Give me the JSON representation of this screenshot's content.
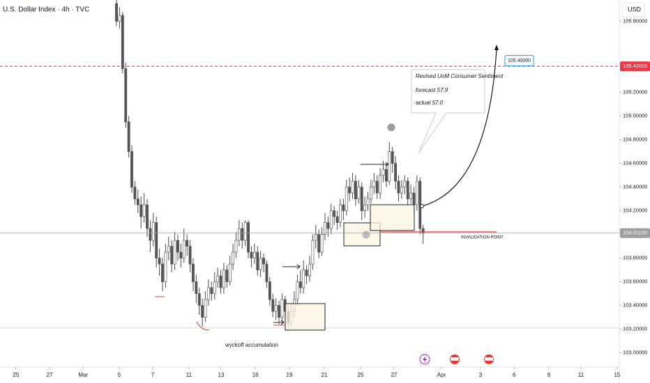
{
  "chart_data": {
    "type": "candlestick",
    "title": "U.S. Dollar Index · 4h · TVC",
    "currency": "USD",
    "up_color": "#ffffff",
    "down_color": "#555555",
    "wick_color": "#4a4a4a",
    "grid": false,
    "xlim": [
      0,
      202
    ],
    "ylim": [
      102.88,
      105.98
    ],
    "xticks": [
      {
        "value": 5.2,
        "label": "25"
      },
      {
        "value": 16.2,
        "label": "27"
      },
      {
        "value": 27.1,
        "label": "Mar"
      },
      {
        "value": 38.9,
        "label": "5"
      },
      {
        "value": 49.8,
        "label": "7"
      },
      {
        "value": 61.6,
        "label": "11"
      },
      {
        "value": 72.1,
        "label": "13"
      },
      {
        "value": 83.3,
        "label": "16"
      },
      {
        "value": 94.4,
        "label": "19"
      },
      {
        "value": 105.8,
        "label": "21"
      },
      {
        "value": 117.6,
        "label": "25"
      },
      {
        "value": 128.5,
        "label": "27"
      },
      {
        "value": 144,
        "label": "Apr"
      },
      {
        "value": 156.7,
        "label": "3"
      },
      {
        "value": 167.7,
        "label": "6"
      },
      {
        "value": 179,
        "label": "9"
      },
      {
        "value": 189.5,
        "label": "11"
      },
      {
        "value": 201.3,
        "label": "15"
      }
    ],
    "yticks": [
      {
        "value": 103,
        "label": "103.00000"
      },
      {
        "value": 103.2,
        "label": "103.20000"
      },
      {
        "value": 103.4,
        "label": "103.40000"
      },
      {
        "value": 103.6,
        "label": "103.60000"
      },
      {
        "value": 103.8,
        "label": "103.80000"
      },
      {
        "value": 104.2,
        "label": "104.20000"
      },
      {
        "value": 104.4,
        "label": "104.40000"
      },
      {
        "value": 104.6,
        "label": "104.60000"
      },
      {
        "value": 104.8,
        "label": "104.80000"
      },
      {
        "value": 105,
        "label": "105.00000"
      },
      {
        "value": 105.2,
        "label": "105.20000"
      },
      {
        "value": 105.8,
        "label": "105.80000"
      }
    ],
    "price_lines": [
      {
        "value": 105.42,
        "label": "105.42000",
        "color": "#f23645",
        "dashed": true
      },
      {
        "value": 104.011,
        "label": "104.01100",
        "color": "#9e9e9e",
        "dashed": false
      }
    ],
    "target": {
      "value": 105.4,
      "label": "105.40000"
    },
    "callout": {
      "title": "Revised UoM Consumer Sentiment",
      "forecast": "forecast  57.9",
      "actual": "actual 57.0"
    },
    "invalidation_label": "INVALIDATION POINT",
    "note": "wyckoff accumulation",
    "x": [
      38,
      39,
      40,
      41,
      42,
      43,
      44,
      45,
      46,
      47,
      48,
      49,
      50,
      51,
      52,
      53,
      54,
      55,
      56,
      57,
      58,
      59,
      60,
      61,
      62,
      63,
      64,
      65,
      66,
      67,
      68,
      69,
      70,
      71,
      72,
      73,
      74,
      75,
      76,
      77,
      78,
      79,
      80,
      81,
      82,
      83,
      84,
      85,
      86,
      87,
      88,
      89,
      90,
      91,
      92,
      93,
      94,
      95,
      96,
      97,
      98,
      99,
      100,
      101,
      102,
      103,
      104,
      105,
      106,
      107,
      108,
      109,
      110,
      111,
      112,
      113,
      114,
      115,
      116,
      117,
      118,
      119,
      120,
      121,
      122,
      123,
      124,
      125,
      126,
      127,
      128,
      129,
      130,
      131,
      132,
      133,
      134,
      135,
      136,
      137,
      138
    ],
    "open": [
      105.95,
      105.8,
      105.85,
      105.4,
      104.95,
      104.7,
      104.4,
      104.3,
      104.25,
      104.15,
      104.25,
      104.05,
      103.95,
      104.1,
      103.8,
      103.75,
      103.6,
      103.85,
      103.9,
      103.75,
      103.95,
      103.85,
      103.8,
      103.95,
      103.9,
      103.75,
      103.6,
      103.5,
      103.4,
      103.3,
      103.45,
      103.55,
      103.5,
      103.6,
      103.65,
      103.55,
      103.7,
      103.6,
      103.75,
      103.85,
      103.95,
      104.05,
      103.95,
      104.1,
      103.85,
      103.8,
      103.85,
      103.7,
      103.8,
      103.75,
      103.6,
      103.45,
      103.35,
      103.4,
      103.3,
      103.45,
      103.35,
      103.25,
      103.35,
      103.45,
      103.6,
      103.55,
      103.7,
      103.65,
      103.75,
      103.95,
      104.0,
      103.85,
      104.0,
      104.1,
      104.05,
      104.2,
      104.15,
      104.1,
      104.25,
      104.2,
      104.4,
      104.35,
      104.45,
      104.3,
      104.4,
      104.2,
      104.25,
      104.3,
      104.4,
      104.45,
      104.35,
      104.5,
      104.55,
      104.45,
      104.7,
      104.6,
      104.45,
      104.35,
      104.4,
      104.45,
      104.3,
      104.35,
      104.25,
      104.45,
      104.05
    ],
    "high": [
      105.98,
      105.92,
      105.88,
      105.45,
      105.0,
      104.75,
      104.45,
      104.38,
      104.32,
      104.35,
      104.3,
      104.12,
      104.18,
      104.15,
      103.88,
      103.8,
      103.92,
      103.98,
      103.95,
      104.02,
      104.0,
      103.92,
      104.05,
      104.0,
      103.95,
      103.8,
      103.66,
      103.55,
      103.46,
      103.52,
      103.62,
      103.6,
      103.68,
      103.72,
      103.7,
      103.76,
      103.74,
      103.82,
      103.92,
      104.02,
      104.12,
      104.1,
      104.12,
      104.12,
      103.9,
      103.92,
      103.9,
      103.86,
      103.84,
      103.78,
      103.64,
      103.5,
      103.46,
      103.44,
      103.5,
      103.48,
      103.4,
      103.42,
      103.52,
      103.66,
      103.7,
      103.78,
      103.74,
      103.82,
      104.0,
      104.08,
      104.04,
      104.06,
      104.18,
      104.15,
      104.26,
      104.24,
      104.2,
      104.3,
      104.3,
      104.46,
      104.48,
      104.52,
      104.5,
      104.46,
      104.44,
      104.32,
      104.36,
      104.46,
      104.52,
      104.5,
      104.56,
      104.62,
      104.6,
      104.78,
      104.74,
      104.66,
      104.5,
      104.46,
      104.5,
      104.48,
      104.42,
      104.4,
      104.5,
      104.48,
      104.08
    ],
    "low": [
      105.76,
      105.74,
      105.36,
      104.9,
      104.65,
      104.35,
      104.25,
      104.18,
      104.05,
      104.1,
      103.98,
      103.85,
      103.9,
      103.72,
      103.65,
      103.52,
      103.55,
      103.78,
      103.68,
      103.7,
      103.78,
      103.72,
      103.76,
      103.82,
      103.68,
      103.52,
      103.42,
      103.32,
      103.22,
      103.26,
      103.4,
      103.44,
      103.45,
      103.55,
      103.5,
      103.5,
      103.55,
      103.57,
      103.7,
      103.8,
      103.9,
      103.88,
      103.9,
      103.8,
      103.72,
      103.75,
      103.65,
      103.64,
      103.68,
      103.55,
      103.4,
      103.3,
      103.28,
      103.24,
      103.26,
      103.28,
      103.2,
      103.22,
      103.3,
      103.4,
      103.5,
      103.5,
      103.58,
      103.6,
      103.7,
      103.88,
      103.8,
      103.82,
      103.95,
      103.98,
      104.0,
      104.08,
      104.04,
      104.06,
      104.12,
      104.16,
      104.28,
      104.3,
      104.24,
      104.26,
      104.12,
      104.14,
      104.2,
      104.26,
      104.34,
      104.3,
      104.3,
      104.44,
      104.4,
      104.42,
      104.52,
      104.38,
      104.28,
      104.3,
      104.34,
      104.24,
      104.26,
      104.18,
      104.2,
      104.0,
      103.92
    ],
    "close": [
      105.8,
      105.85,
      105.4,
      104.95,
      104.7,
      104.4,
      104.3,
      104.25,
      104.15,
      104.25,
      104.05,
      103.95,
      104.1,
      103.8,
      103.75,
      103.6,
      103.85,
      103.9,
      103.75,
      103.95,
      103.85,
      103.8,
      103.95,
      103.9,
      103.75,
      103.6,
      103.5,
      103.4,
      103.3,
      103.45,
      103.55,
      103.5,
      103.6,
      103.65,
      103.55,
      103.7,
      103.6,
      103.75,
      103.85,
      103.95,
      104.05,
      103.95,
      104.1,
      103.85,
      103.8,
      103.85,
      103.7,
      103.8,
      103.75,
      103.6,
      103.45,
      103.35,
      103.4,
      103.3,
      103.45,
      103.35,
      103.25,
      103.35,
      103.45,
      103.6,
      103.55,
      103.7,
      103.65,
      103.75,
      103.95,
      104.0,
      103.85,
      104.0,
      104.1,
      104.05,
      104.2,
      104.15,
      104.1,
      104.25,
      104.2,
      104.4,
      104.35,
      104.45,
      104.3,
      104.4,
      104.2,
      104.25,
      104.3,
      104.4,
      104.45,
      104.35,
      104.5,
      104.55,
      104.45,
      104.7,
      104.6,
      104.45,
      104.35,
      104.4,
      104.45,
      104.3,
      104.35,
      104.25,
      104.45,
      104.05,
      104.01
    ]
  }
}
